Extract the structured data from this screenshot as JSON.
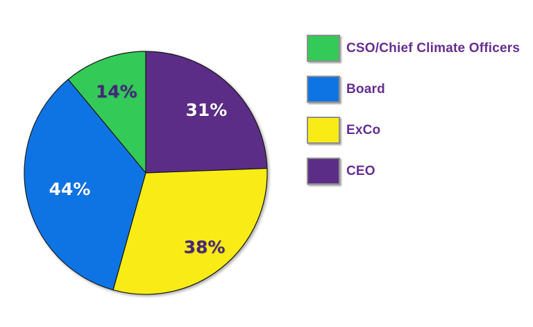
{
  "chart_data": {
    "type": "pie",
    "title": "",
    "legend_position": "right",
    "labels_show": "percent",
    "start_angle_deg": 0,
    "direction": "clockwise",
    "slices": [
      {
        "label": "CEO",
        "value": 31,
        "display": "31%",
        "color": "#5c2d87",
        "text_color": "#ffffff"
      },
      {
        "label": "ExCo",
        "value": 38,
        "display": "38%",
        "color": "#f9ec16",
        "text_color": "#46257e"
      },
      {
        "label": "Board",
        "value": 44,
        "display": "44%",
        "color": "#0e74e4",
        "text_color": "#ffffff"
      },
      {
        "label": "CSO/Chief Climate Officers",
        "value": 14,
        "display": "14%",
        "color": "#33ca57",
        "text_color": "#46257e"
      }
    ],
    "outline_color": "#161616"
  },
  "legend": {
    "text_color": "#662d91",
    "items": [
      {
        "label": "CSO/Chief Climate Officers",
        "color": "#33ca57"
      },
      {
        "label": "Board",
        "color": "#0e74e4"
      },
      {
        "label": "ExCo",
        "color": "#f9ec16"
      },
      {
        "label": "CEO",
        "color": "#5c2d87"
      }
    ]
  }
}
